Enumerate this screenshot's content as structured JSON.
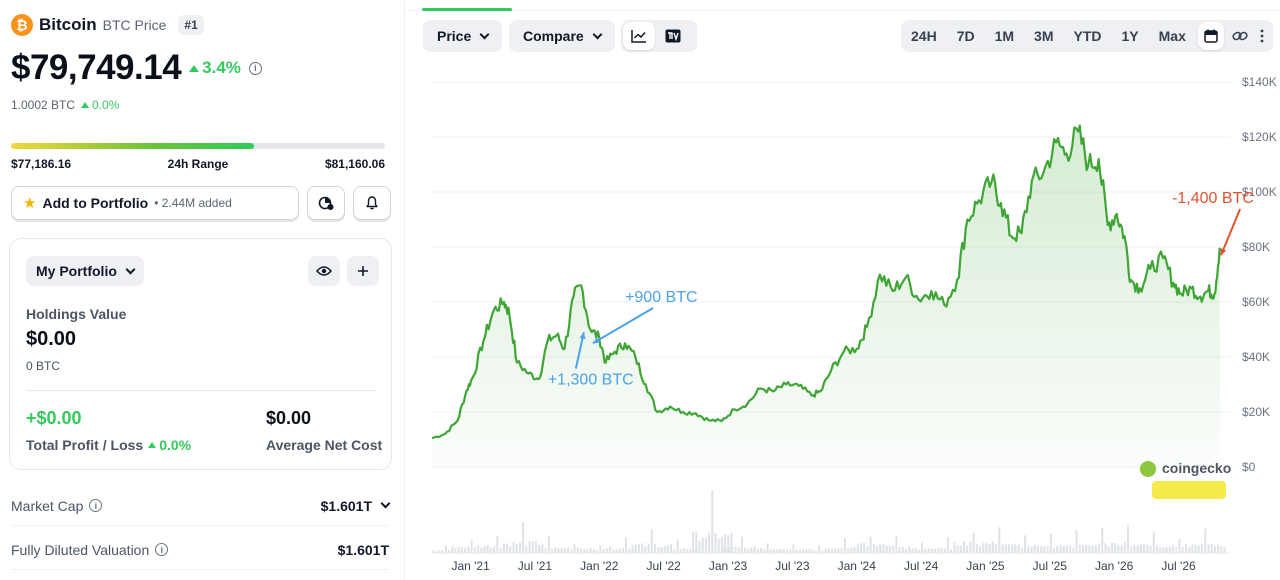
{
  "coin": {
    "name": "Bitcoin",
    "subtitle": "BTC Price",
    "rank": "#1",
    "logo_glyph": "₿",
    "price": "$79,749.14",
    "change_pct": "3.4%",
    "btc_value": "1.0002 BTC",
    "btc_change": "0.0%",
    "brand_color": "#f7931a"
  },
  "range": {
    "low": "$77,186.16",
    "label": "24h Range",
    "high": "$81,160.06",
    "position": 0.65
  },
  "portfolio_bar": {
    "add_label": "Add to Portfolio",
    "added_text": "• 2.44M added"
  },
  "portfolio": {
    "dropdown_label": "My Portfolio",
    "holdings_label": "Holdings Value",
    "holdings_value": "$0.00",
    "holdings_btc": "0 BTC",
    "profit_value": "+$0.00",
    "profit_label": "Total Profit / Loss",
    "profit_pct": "0.0%",
    "avg_cost_value": "$0.00",
    "avg_cost_label": "Average Net Cost"
  },
  "stats": [
    {
      "label": "Market Cap",
      "value": "$1.601T"
    },
    {
      "label": "Fully Diluted Valuation",
      "value": "$1.601T"
    }
  ],
  "toolbar": {
    "price_label": "Price",
    "compare_label": "Compare",
    "ranges": [
      "24H",
      "7D",
      "1M",
      "3M",
      "YTD",
      "1Y",
      "Max"
    ]
  },
  "chart_data": {
    "type": "area",
    "y_ticks": [
      "$140K",
      "$120K",
      "$100K",
      "$80K",
      "$60K",
      "$40K",
      "$20K",
      "$0"
    ],
    "ylim": [
      0,
      140000
    ],
    "x_ticks": [
      "Jan '21",
      "Jul '21",
      "Jan '22",
      "Jul '22",
      "Jan '23",
      "Jul '23",
      "Jan '24",
      "Jul '24",
      "Jan '25",
      "Jul '25",
      "Jan '26",
      "Jul '26"
    ],
    "xlim": [
      2020.7,
      2026.9
    ],
    "series": [
      {
        "values": [
          [
            2020.7,
            10500
          ],
          [
            2020.8,
            12000
          ],
          [
            2020.9,
            17000
          ],
          [
            2020.97,
            28000
          ],
          [
            2021.02,
            33000
          ],
          [
            2021.1,
            46000
          ],
          [
            2021.18,
            57000
          ],
          [
            2021.26,
            60000
          ],
          [
            2021.3,
            56000
          ],
          [
            2021.36,
            38000
          ],
          [
            2021.45,
            34000
          ],
          [
            2021.53,
            32000
          ],
          [
            2021.6,
            46000
          ],
          [
            2021.67,
            48000
          ],
          [
            2021.73,
            43000
          ],
          [
            2021.8,
            62000
          ],
          [
            2021.86,
            66000
          ],
          [
            2021.93,
            50000
          ],
          [
            2022.0,
            47000
          ],
          [
            2022.05,
            38000
          ],
          [
            2022.12,
            42000
          ],
          [
            2022.2,
            45000
          ],
          [
            2022.28,
            40000
          ],
          [
            2022.36,
            30000
          ],
          [
            2022.45,
            20000
          ],
          [
            2022.55,
            22000
          ],
          [
            2022.65,
            20000
          ],
          [
            2022.75,
            19500
          ],
          [
            2022.85,
            17000
          ],
          [
            2022.95,
            16700
          ],
          [
            2023.05,
            21000
          ],
          [
            2023.15,
            23000
          ],
          [
            2023.25,
            28500
          ],
          [
            2023.35,
            27500
          ],
          [
            2023.45,
            30000
          ],
          [
            2023.55,
            29500
          ],
          [
            2023.65,
            26000
          ],
          [
            2023.72,
            27500
          ],
          [
            2023.8,
            35000
          ],
          [
            2023.9,
            42000
          ],
          [
            2024.0,
            43000
          ],
          [
            2024.08,
            51000
          ],
          [
            2024.18,
            70000
          ],
          [
            2024.28,
            64000
          ],
          [
            2024.38,
            69000
          ],
          [
            2024.48,
            61000
          ],
          [
            2024.58,
            64000
          ],
          [
            2024.68,
            59000
          ],
          [
            2024.78,
            68000
          ],
          [
            2024.86,
            90000
          ],
          [
            2024.95,
            97000
          ],
          [
            2025.05,
            104000
          ],
          [
            2025.12,
            96000
          ],
          [
            2025.2,
            84000
          ],
          [
            2025.28,
            85000
          ],
          [
            2025.36,
            104000
          ],
          [
            2025.45,
            107000
          ],
          [
            2025.55,
            118000
          ],
          [
            2025.63,
            114000
          ],
          [
            2025.72,
            122000
          ],
          [
            2025.8,
            110000
          ],
          [
            2025.88,
            112000
          ],
          [
            2025.95,
            88000
          ],
          [
            2026.02,
            92000
          ],
          [
            2026.08,
            84000
          ],
          [
            2026.13,
            68000
          ],
          [
            2026.2,
            65000
          ],
          [
            2026.28,
            72000
          ],
          [
            2026.38,
            76000
          ],
          [
            2026.46,
            67000
          ],
          [
            2026.52,
            63000
          ],
          [
            2026.6,
            65000
          ],
          [
            2026.67,
            62000
          ],
          [
            2026.73,
            64000
          ],
          [
            2026.78,
            63000
          ],
          [
            2026.82,
            79749
          ]
        ]
      }
    ],
    "volume": [
      [
        2020.8,
        0.15
      ],
      [
        2021.0,
        0.35
      ],
      [
        2021.2,
        0.4
      ],
      [
        2021.4,
        0.55
      ],
      [
        2021.6,
        0.3
      ],
      [
        2021.8,
        0.25
      ],
      [
        2022.0,
        0.2
      ],
      [
        2022.2,
        0.3
      ],
      [
        2022.4,
        0.45
      ],
      [
        2022.6,
        0.25
      ],
      [
        2022.87,
        1.0
      ],
      [
        2023.1,
        0.3
      ],
      [
        2023.3,
        0.25
      ],
      [
        2023.5,
        0.2
      ],
      [
        2023.7,
        0.15
      ],
      [
        2023.9,
        0.25
      ],
      [
        2024.1,
        0.45
      ],
      [
        2024.3,
        0.35
      ],
      [
        2024.5,
        0.25
      ],
      [
        2024.7,
        0.3
      ],
      [
        2024.9,
        0.55
      ],
      [
        2025.1,
        0.45
      ],
      [
        2025.3,
        0.4
      ],
      [
        2025.5,
        0.35
      ],
      [
        2025.7,
        0.4
      ],
      [
        2025.9,
        0.45
      ],
      [
        2026.1,
        0.5
      ],
      [
        2026.3,
        0.4
      ],
      [
        2026.5,
        0.35
      ],
      [
        2026.7,
        0.45
      ]
    ],
    "annotations": [
      {
        "text": "+900 BTC",
        "x": 2022.2,
        "y": 60000,
        "color": "#4aa3e8",
        "arrow_to": [
          2021.95,
          45000
        ]
      },
      {
        "text": "+1,300 BTC",
        "x": 2021.6,
        "y": 30000,
        "color": "#4aa3e8",
        "arrow_to": [
          2021.88,
          49000
        ]
      },
      {
        "text": "-1,400 BTC",
        "x": 2026.45,
        "y": 96000,
        "color": "#e0532f",
        "arrow_to": [
          2026.83,
          77000
        ]
      }
    ],
    "line_color": "#3fa535",
    "watermark": "coingecko"
  }
}
